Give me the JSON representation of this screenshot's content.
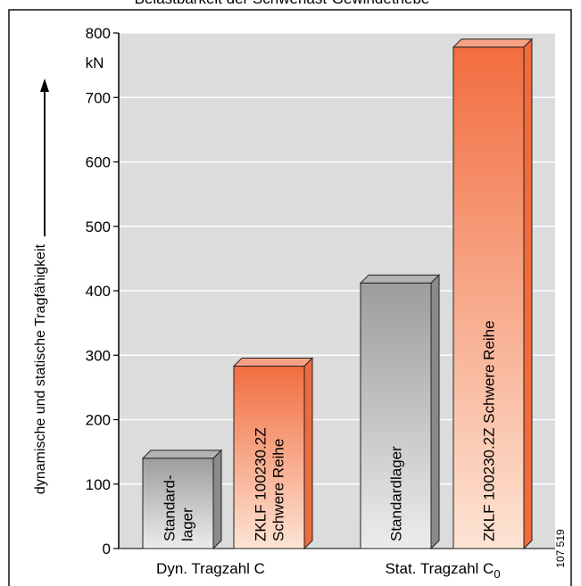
{
  "chart_data": {
    "type": "bar",
    "title": "Belastbarkeit der Schwerlast-Gewindetriebe",
    "ylabel": "dynamische und statische Tragfähigkeit",
    "unit": "kN",
    "ylim": [
      0,
      800
    ],
    "yticks": [
      0,
      100,
      200,
      300,
      400,
      500,
      600,
      700,
      800
    ],
    "grid": "horizontal",
    "groups": [
      {
        "label": "Dyn. Tragzahl C",
        "label_main": "Dyn. Tragzahl C",
        "label_sub": "",
        "bars": [
          {
            "label": "Standard-\nlager",
            "lines": [
              "Standard-",
              "lager"
            ],
            "value": 140,
            "color": "gray"
          },
          {
            "label": "ZKLF 100230.2Z Schwere Reihe",
            "lines": [
              "ZKLF 100230.2Z",
              "Schwere Reihe"
            ],
            "value": 283,
            "color": "orange"
          }
        ]
      },
      {
        "label": "Stat. Tragzahl C0",
        "label_main": "Stat. Tragzahl C",
        "label_sub": "0",
        "bars": [
          {
            "label": "Standardlager",
            "lines": [
              "Standardlager"
            ],
            "value": 412,
            "color": "gray"
          },
          {
            "label": "ZKLF 100230.2Z Schwere Reihe",
            "lines": [
              "ZKLF 100230.2Z Schwere Reihe"
            ],
            "value": 778,
            "color": "orange"
          }
        ]
      }
    ],
    "colors": {
      "gray": "#b9b9b9",
      "orange": "#f47f56"
    },
    "figure_number": "107 519"
  }
}
